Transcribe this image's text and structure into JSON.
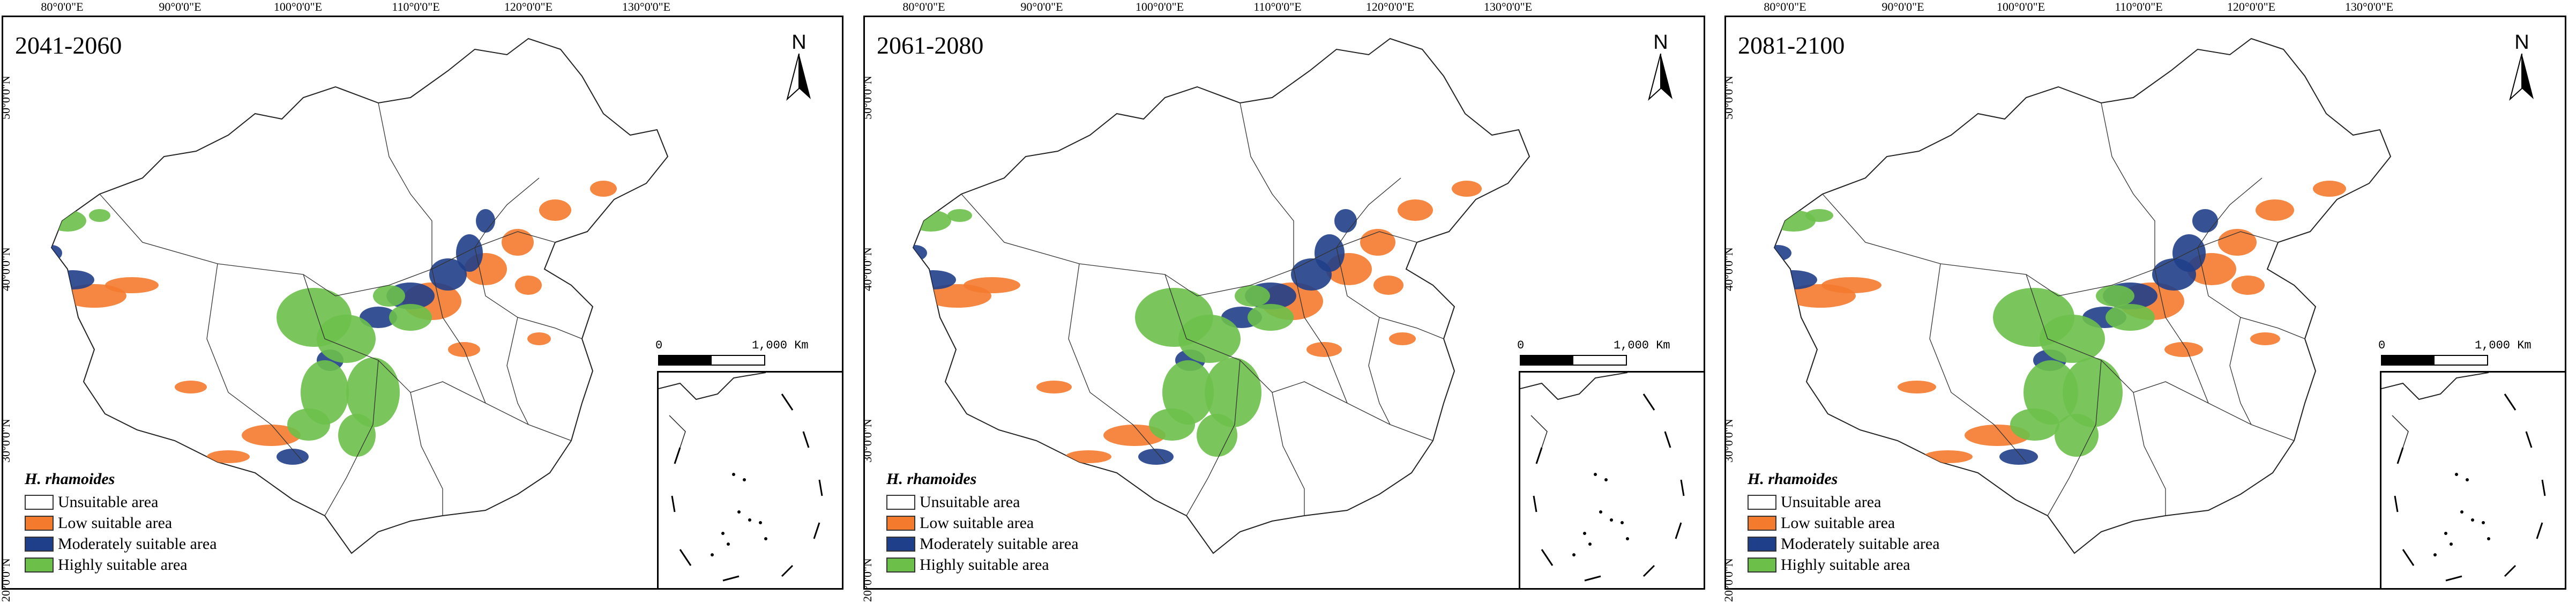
{
  "lon_labels": [
    "80°0'0\"E",
    "90°0'0\"E",
    "100°0'0\"E",
    "110°0'0\"E",
    "120°0'0\"E",
    "130°0'0\"E"
  ],
  "lat_labels": [
    "50°0'0\"N",
    "40°0'0\"N",
    "30°0'0\"N",
    "20°0'0\"N"
  ],
  "north_label": "N",
  "scale": {
    "start": "0",
    "end": "1,000 Km"
  },
  "legend": {
    "title": "H. rhamoides",
    "items": [
      {
        "label": "Unsuitable area",
        "color": "#ffffff"
      },
      {
        "label": "Low suitable area",
        "color": "#f47a2e"
      },
      {
        "label": "Moderately suitable area",
        "color": "#203f8a"
      },
      {
        "label": "Highly suitable area",
        "color": "#6cc04a"
      }
    ]
  },
  "panels": [
    {
      "period": "2041-2060"
    },
    {
      "period": "2061-2080"
    },
    {
      "period": "2081-2100"
    }
  ]
}
